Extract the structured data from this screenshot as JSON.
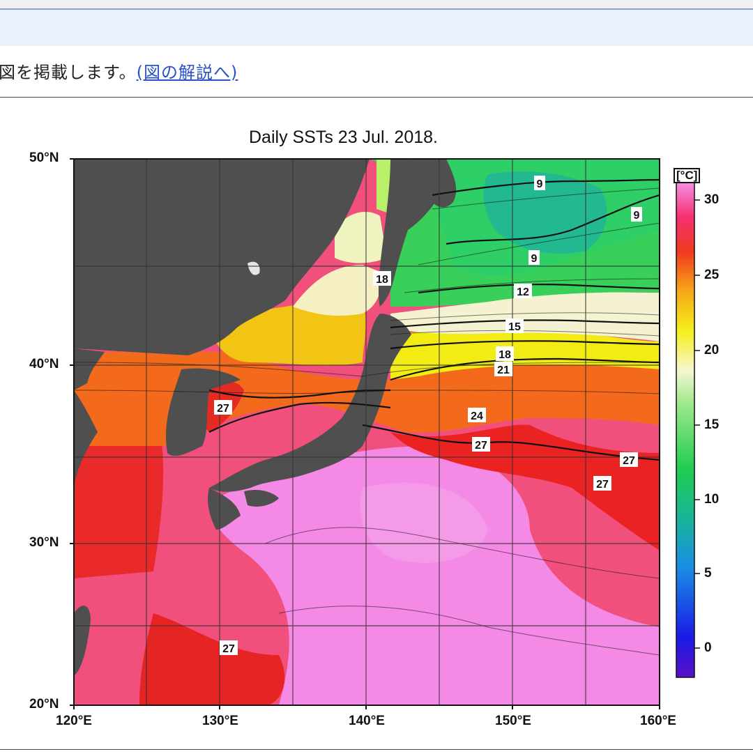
{
  "page": {
    "intro_text": "図を掲載します。",
    "intro_link": "(図の解説へ)"
  },
  "figure": {
    "title": "Daily SSTs 23 Jul. 2018.",
    "lat_labels": [
      "50°N",
      "40°N",
      "30°N",
      "20°N"
    ],
    "lon_labels": [
      "120°E",
      "130°E",
      "140°E",
      "150°E",
      "160°E"
    ],
    "colorbar": {
      "unit": "[°C]",
      "ticks": [
        "30",
        "25",
        "20",
        "15",
        "10",
        "5",
        "0"
      ]
    },
    "contour_labels": [
      "9",
      "9",
      "9",
      "12",
      "15",
      "18",
      "18",
      "21",
      "24",
      "27",
      "27",
      "27",
      "27",
      "27"
    ]
  },
  "colors": {
    "land": "#505050",
    "warmest": "#f58ae6",
    "warm": "#f5325a",
    "hot_red": "#e51e1e",
    "orange": "#f07a1a",
    "yellow": "#f2ee12",
    "pale": "#f7f4c7",
    "green": "#2fd65a",
    "teal": "#20b28a"
  }
}
